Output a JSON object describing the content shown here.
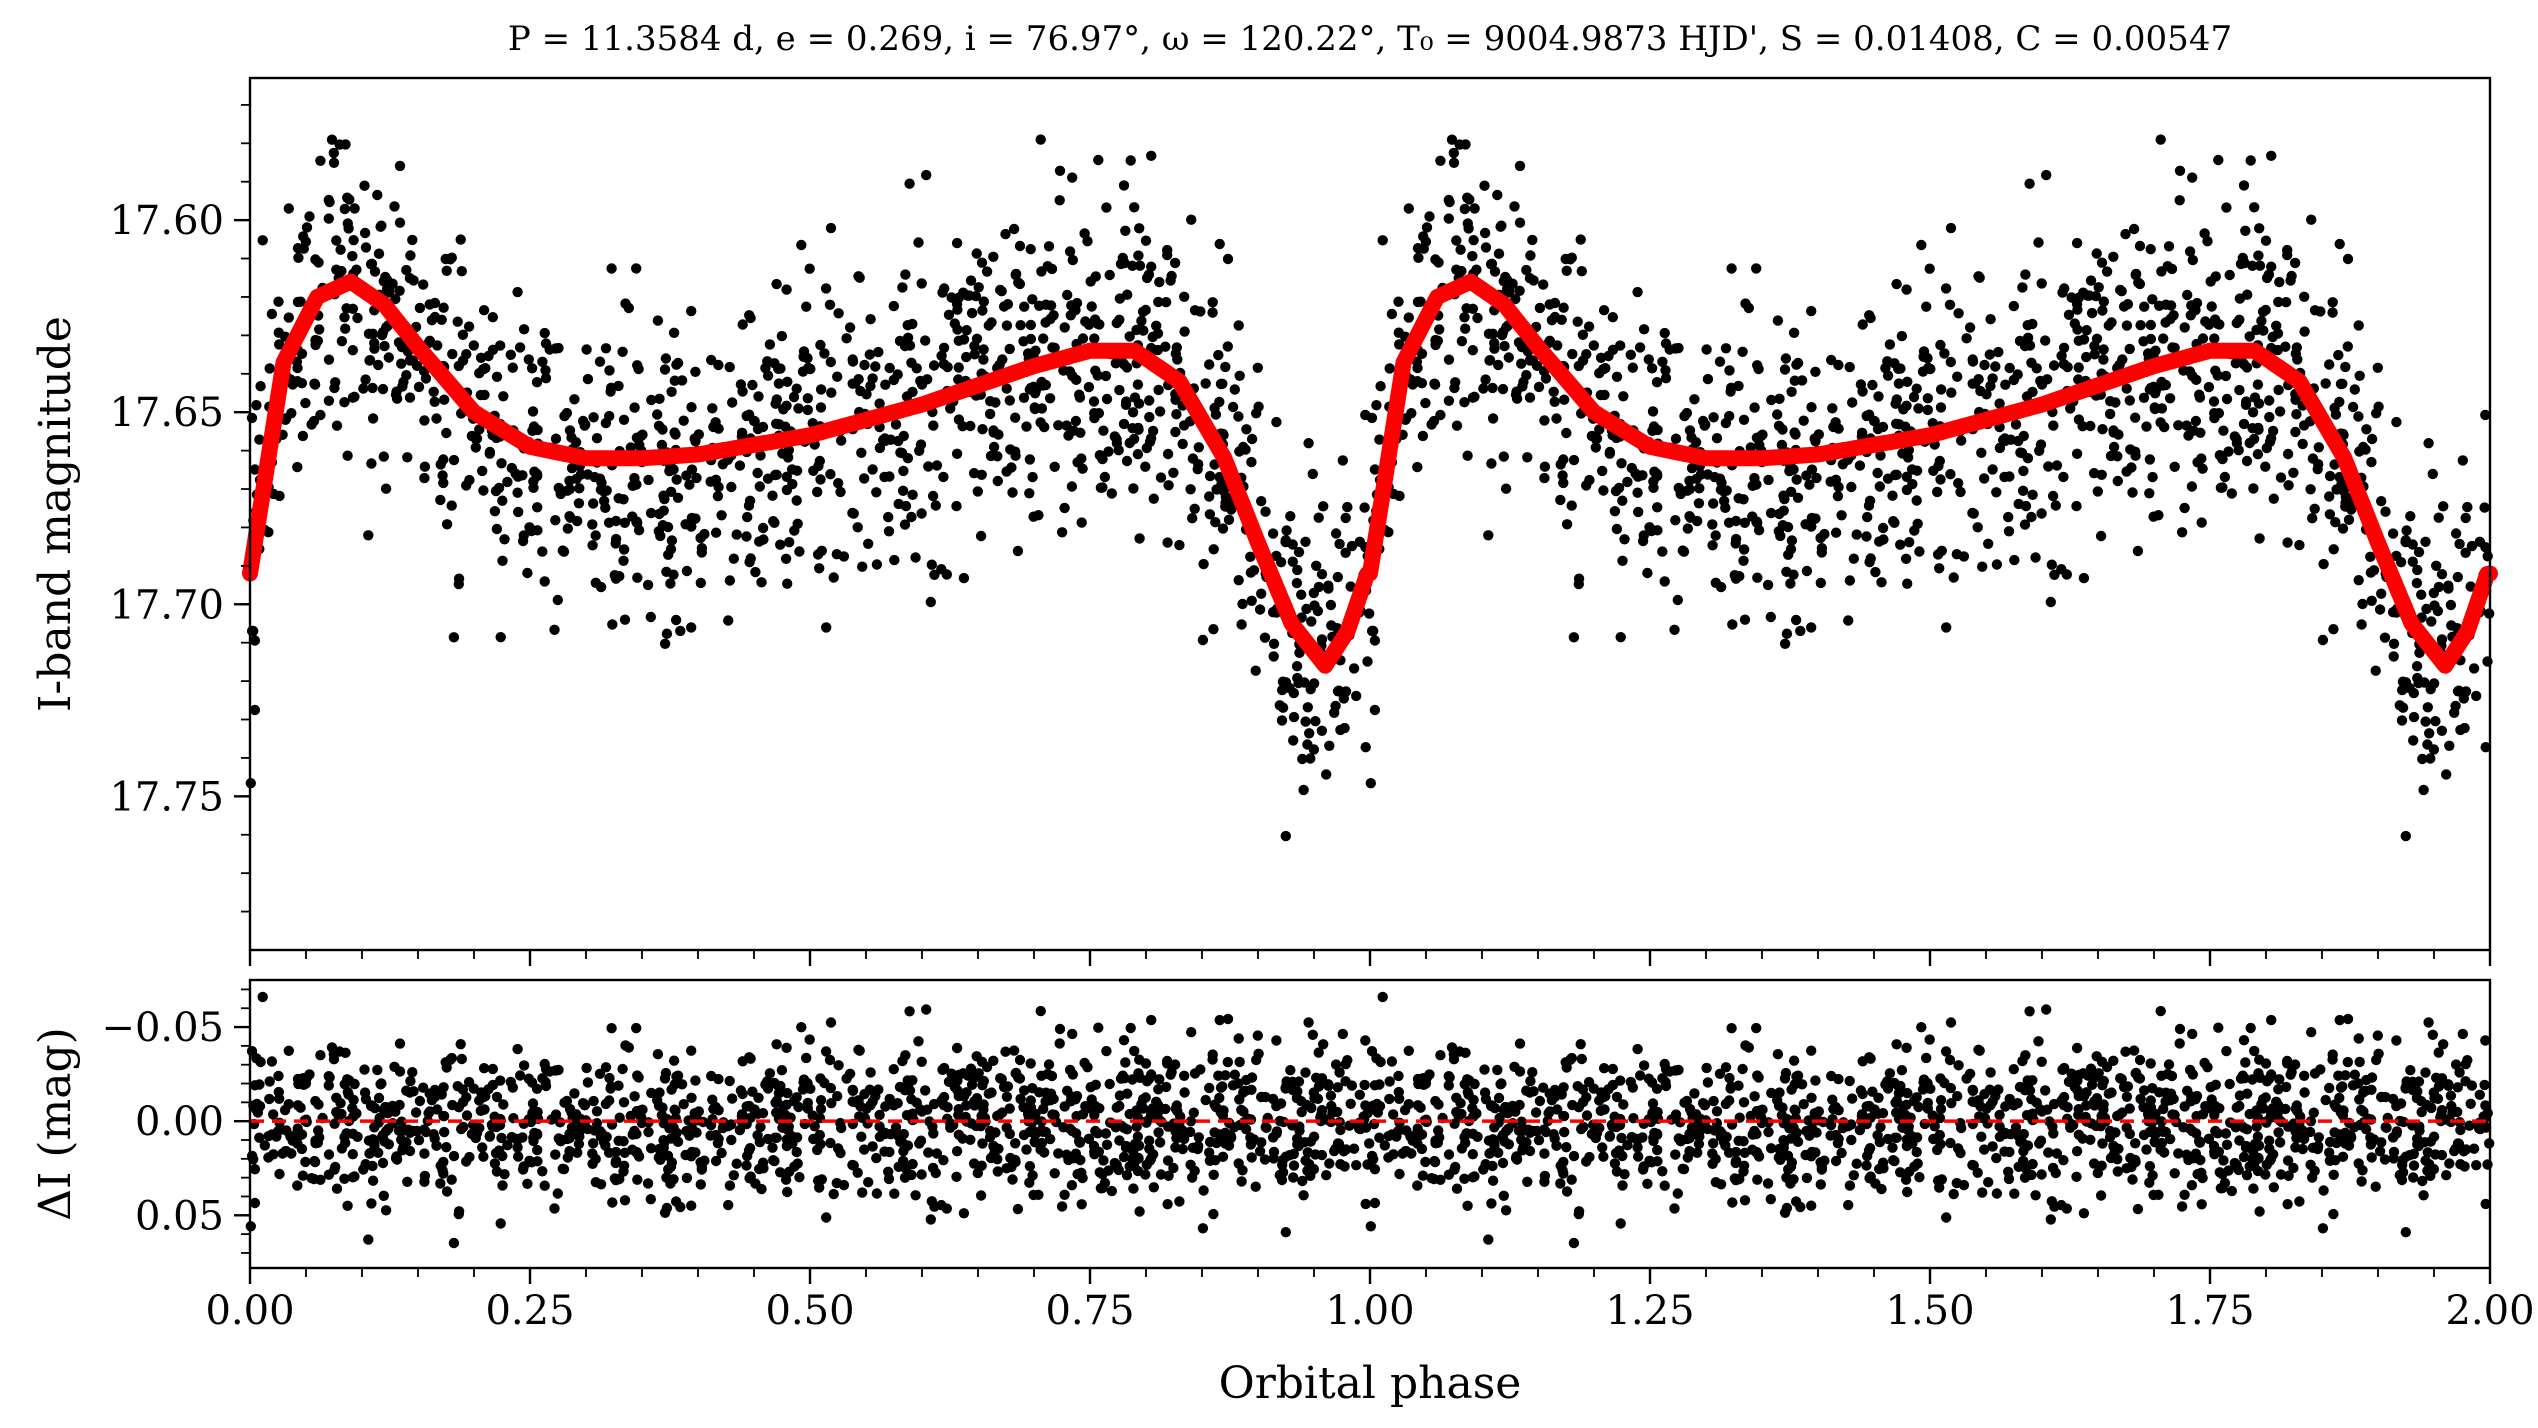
{
  "chart_data": [
    {
      "type": "scatter",
      "title": "P = 11.3584 d, e = 0.269, i = 76.97°, ω = 120.22°, T₀ = 9004.9873 HJD', S = 0.01408, C = 0.00547",
      "xlabel": "Orbital phase",
      "ylabel": "I-band magnitude",
      "xlim": [
        0.0,
        2.0
      ],
      "ylim": [
        17.79,
        17.563
      ],
      "y_inverted": true,
      "grid": false,
      "x_ticks": [
        "0.00",
        "0.25",
        "0.50",
        "0.75",
        "1.00",
        "1.25",
        "1.50",
        "1.75",
        "2.00"
      ],
      "y_ticks": [
        "17.60",
        "17.65",
        "17.70",
        "17.75"
      ],
      "series": [
        {
          "kind": "points",
          "color": "#000000",
          "points_generated_from_model": true,
          "n_points_per_cycle": 1300,
          "scatter_sigma": 0.0205
        },
        {
          "kind": "model_curve",
          "color": "#ff0000",
          "phase": [
            0.0,
            0.03,
            0.06,
            0.09,
            0.12,
            0.15,
            0.2,
            0.25,
            0.3,
            0.35,
            0.4,
            0.5,
            0.6,
            0.7,
            0.75,
            0.79,
            0.83,
            0.87,
            0.9,
            0.93,
            0.96,
            0.98,
            1.0
          ],
          "magnitude": [
            17.692,
            17.637,
            17.62,
            17.616,
            17.622,
            17.633,
            17.65,
            17.659,
            17.662,
            17.662,
            17.661,
            17.656,
            17.648,
            17.638,
            17.634,
            17.634,
            17.642,
            17.662,
            17.684,
            17.705,
            17.716,
            17.707,
            17.69
          ],
          "note": "curve repeats for phase 1.00–2.00"
        }
      ]
    },
    {
      "type": "scatter",
      "xlabel": "Orbital phase",
      "ylabel": "ΔI (mag)",
      "xlim": [
        0.0,
        2.0
      ],
      "ylim": [
        0.078,
        -0.075
      ],
      "y_inverted": true,
      "grid": false,
      "x_ticks": [
        "0.00",
        "0.25",
        "0.50",
        "0.75",
        "1.00",
        "1.25",
        "1.50",
        "1.75",
        "2.00"
      ],
      "y_ticks": [
        "−0.05",
        "0.00",
        "0.05"
      ],
      "series": [
        {
          "kind": "residual_points",
          "color": "#000000"
        },
        {
          "kind": "zero_line",
          "value": 0.0,
          "color": "#ff0000",
          "style": "dashed"
        }
      ]
    }
  ]
}
